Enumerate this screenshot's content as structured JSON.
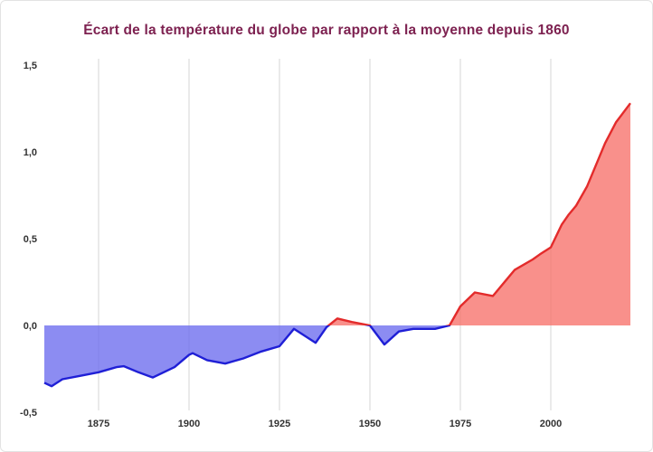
{
  "title": "Écart de la température du globe par rapport à la moyenne depuis 1860",
  "colors": {
    "title": "#7d2150",
    "tick_label": "#333333",
    "gridline": "#d4d4d4",
    "negative_fill": "#6b6bee",
    "negative_line": "#1f1fd6",
    "positive_fill": "#f7716a",
    "positive_line": "#e32b2b",
    "background": "#ffffff"
  },
  "chart_data": {
    "type": "area",
    "title": "Écart de la température du globe par rapport à la moyenne depuis 1860",
    "xlabel": "",
    "ylabel": "",
    "x": [
      1860,
      1862,
      1865,
      1870,
      1875,
      1880,
      1882,
      1886,
      1890,
      1893,
      1896,
      1900,
      1901,
      1905,
      1910,
      1915,
      1920,
      1925,
      1929,
      1932,
      1935,
      1938,
      1941,
      1945,
      1950,
      1954,
      1958,
      1962,
      1968,
      1972,
      1975,
      1979,
      1984,
      1988,
      1990,
      1995,
      1997,
      2000,
      2003,
      2005,
      2007,
      2010,
      2015,
      2018,
      2022
    ],
    "values": [
      -0.33,
      -0.35,
      -0.31,
      -0.29,
      -0.27,
      -0.24,
      -0.235,
      -0.27,
      -0.3,
      -0.27,
      -0.24,
      -0.17,
      -0.16,
      -0.2,
      -0.22,
      -0.19,
      -0.15,
      -0.12,
      -0.02,
      -0.06,
      -0.1,
      -0.01,
      0.04,
      0.02,
      0.0,
      -0.11,
      -0.035,
      -0.02,
      -0.02,
      0.0,
      0.11,
      0.19,
      0.17,
      0.27,
      0.32,
      0.38,
      0.41,
      0.45,
      0.58,
      0.64,
      0.69,
      0.8,
      1.05,
      1.17,
      1.28
    ],
    "baseline": 0,
    "xlim": [
      1860,
      2022
    ],
    "ylim": [
      -0.5,
      1.5
    ],
    "x_tick_labels": [
      "1875",
      "1900",
      "1925",
      "1950",
      "1975",
      "2000"
    ],
    "x_tick_values": [
      1875,
      1900,
      1925,
      1950,
      1975,
      2000
    ],
    "y_tick_labels": [
      "1,5",
      "1,0",
      "0,5",
      "0,0",
      "-0,5"
    ],
    "y_tick_values": [
      1.5,
      1.0,
      0.5,
      0.0,
      -0.5
    ],
    "grid": "vertical-only",
    "legend": "none"
  }
}
